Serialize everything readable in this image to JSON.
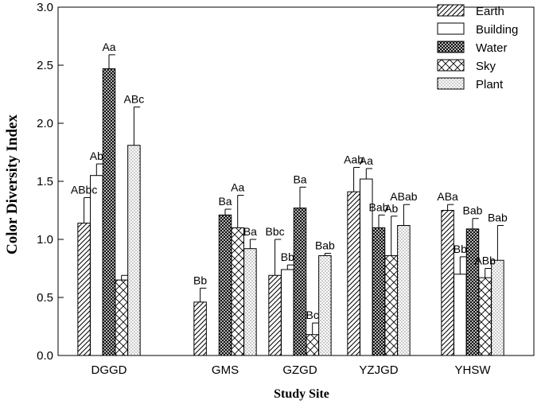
{
  "chart_data": {
    "type": "bar",
    "title": "",
    "xlabel": "Study Site",
    "ylabel": "Color Diversity Index",
    "ylim": [
      0,
      3.0
    ],
    "yticks": [
      "0.0",
      "0.5",
      "1.0",
      "1.5",
      "2.0",
      "2.5",
      "3.0"
    ],
    "grid": false,
    "legend_position": "top-right",
    "categories": [
      "DGGD",
      "GMS",
      "GZGD",
      "YZJGD",
      "YHSW"
    ],
    "series": [
      {
        "name": "Earth",
        "pattern": "diagonal",
        "values": [
          1.14,
          0.46,
          0.69,
          1.41,
          1.25
        ],
        "errors": [
          0.22,
          0.12,
          0.31,
          0.21,
          0.05
        ],
        "labels": [
          "ABbc",
          "Bb",
          "Bbc",
          "Aab",
          "ABa"
        ]
      },
      {
        "name": "Building",
        "pattern": "open",
        "values": [
          1.55,
          0.0,
          0.74,
          1.52,
          0.7
        ],
        "errors": [
          0.1,
          0.0,
          0.04,
          0.09,
          0.15
        ],
        "labels": [
          "Ab",
          "",
          "Bb",
          "Aa",
          "Bb"
        ]
      },
      {
        "name": "Water",
        "pattern": "crosshatch",
        "values": [
          2.47,
          1.21,
          1.27,
          1.1,
          1.09
        ],
        "errors": [
          0.12,
          0.05,
          0.18,
          0.11,
          0.09
        ],
        "labels": [
          "Aa",
          "Ba",
          "Ba",
          "Bab",
          "Bab"
        ]
      },
      {
        "name": "Sky",
        "pattern": "x-pattern",
        "values": [
          0.65,
          1.1,
          0.18,
          0.86,
          0.67
        ],
        "errors": [
          0.04,
          0.28,
          0.1,
          0.34,
          0.08
        ],
        "labels": [
          "",
          "Aa",
          "Bc",
          "Ab",
          "ABb"
        ]
      },
      {
        "name": "Plant",
        "pattern": "dotted",
        "values": [
          1.81,
          0.92,
          0.86,
          1.12,
          0.82
        ],
        "errors": [
          0.33,
          0.08,
          0.02,
          0.18,
          0.3
        ],
        "labels": [
          "ABc",
          "Ba",
          "Bab",
          "ABab",
          "Bab"
        ]
      }
    ]
  }
}
